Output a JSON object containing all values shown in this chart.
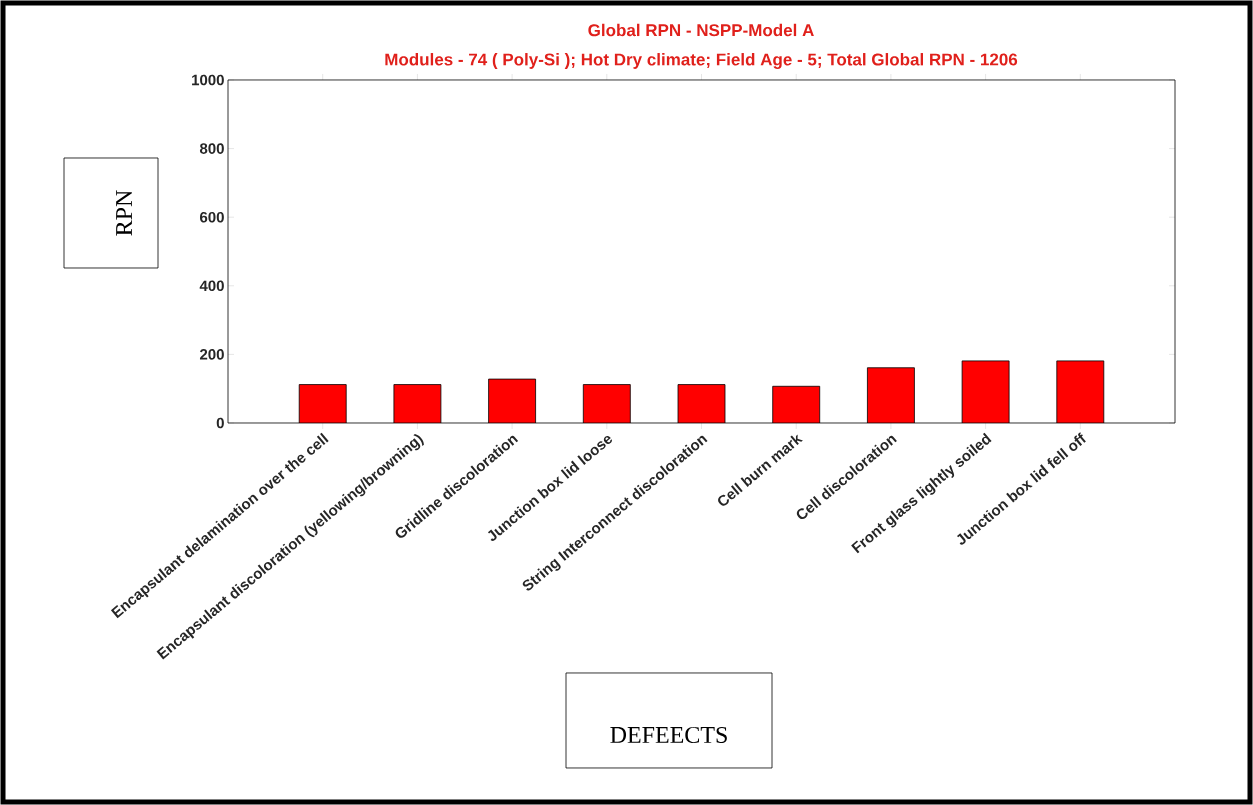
{
  "chart_data": {
    "type": "bar",
    "title": "Global RPN - NSPP-Model A",
    "subtitle": "Modules - 74 ( Poly-Si ); Hot Dry climate; Field Age - 5; Total Global RPN - 1206",
    "xlabel": "DEFEECTS",
    "ylabel": "RPN",
    "categories": [
      "Encapsulant delamination over the cell",
      "Encapsulant discoloration (yellowing/browning)",
      "Gridline discoloration",
      "Junction box lid loose",
      "String Interconnect discoloration",
      "Cell burn mark",
      "Cell discoloration",
      "Front glass lightly soiled",
      "Junction box lid fell off"
    ],
    "values": [
      112,
      112,
      128,
      112,
      112,
      107,
      161,
      181,
      181
    ],
    "color": "#ff0000",
    "ylim": [
      0,
      1000
    ],
    "yticks": [
      0,
      200,
      400,
      600,
      800,
      1000
    ]
  }
}
